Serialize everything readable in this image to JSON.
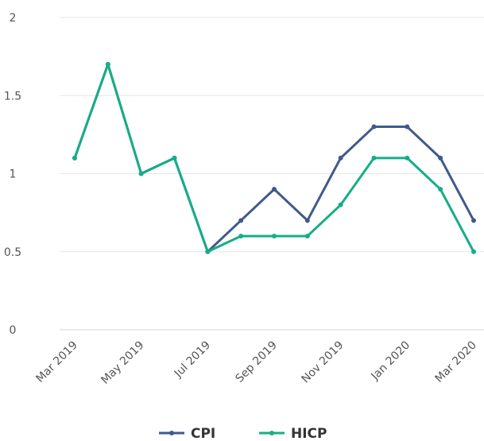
{
  "chart_data": {
    "type": "line",
    "categories": [
      "Mar 2019",
      null,
      "May 2019",
      null,
      "Jul 2019",
      null,
      "Sep 2019",
      null,
      "Nov 2019",
      null,
      "Jan 2020",
      null,
      "Mar 2020"
    ],
    "series": [
      {
        "name": "CPI",
        "color": "#3f5a8c",
        "values": [
          1.1,
          1.7,
          1.0,
          1.1,
          0.5,
          0.7,
          0.9,
          0.7,
          1.1,
          1.3,
          1.3,
          1.1,
          0.7
        ]
      },
      {
        "name": "HICP",
        "color": "#17ad88",
        "values": [
          1.1,
          1.7,
          1.0,
          1.1,
          0.5,
          0.6,
          0.6,
          0.6,
          0.8,
          1.1,
          1.1,
          0.9,
          0.5
        ]
      }
    ],
    "ylim": [
      0,
      2
    ],
    "yticks": [
      0,
      0.5,
      1,
      1.5,
      2
    ],
    "grid": true
  }
}
